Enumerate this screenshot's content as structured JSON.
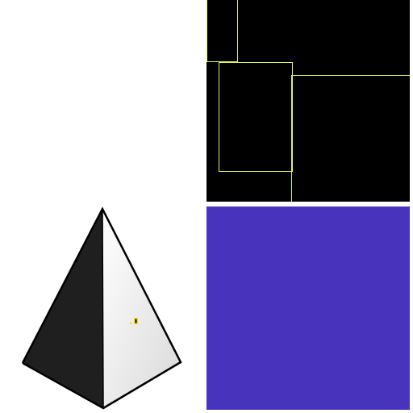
{
  "colors": {
    "background": "#ffffff",
    "dark_panel": "#000000",
    "outline": "#e6f05a",
    "swatch": "#4833bc",
    "pyramid_dark_face": "#1f1f1f",
    "pyramid_light_face": "#f2f2f2",
    "pyramid_edge": "#000000",
    "marker": "#f5e10a"
  },
  "panels": {
    "top_left": {
      "content": "blank"
    },
    "top_right": {
      "content": "nested-outlined-rectangles",
      "rect_count": 3
    },
    "bottom_left": {
      "content": "pyramid-render",
      "icon": "pyramid-icon"
    },
    "bottom_right": {
      "content": "solid-color-swatch"
    }
  }
}
